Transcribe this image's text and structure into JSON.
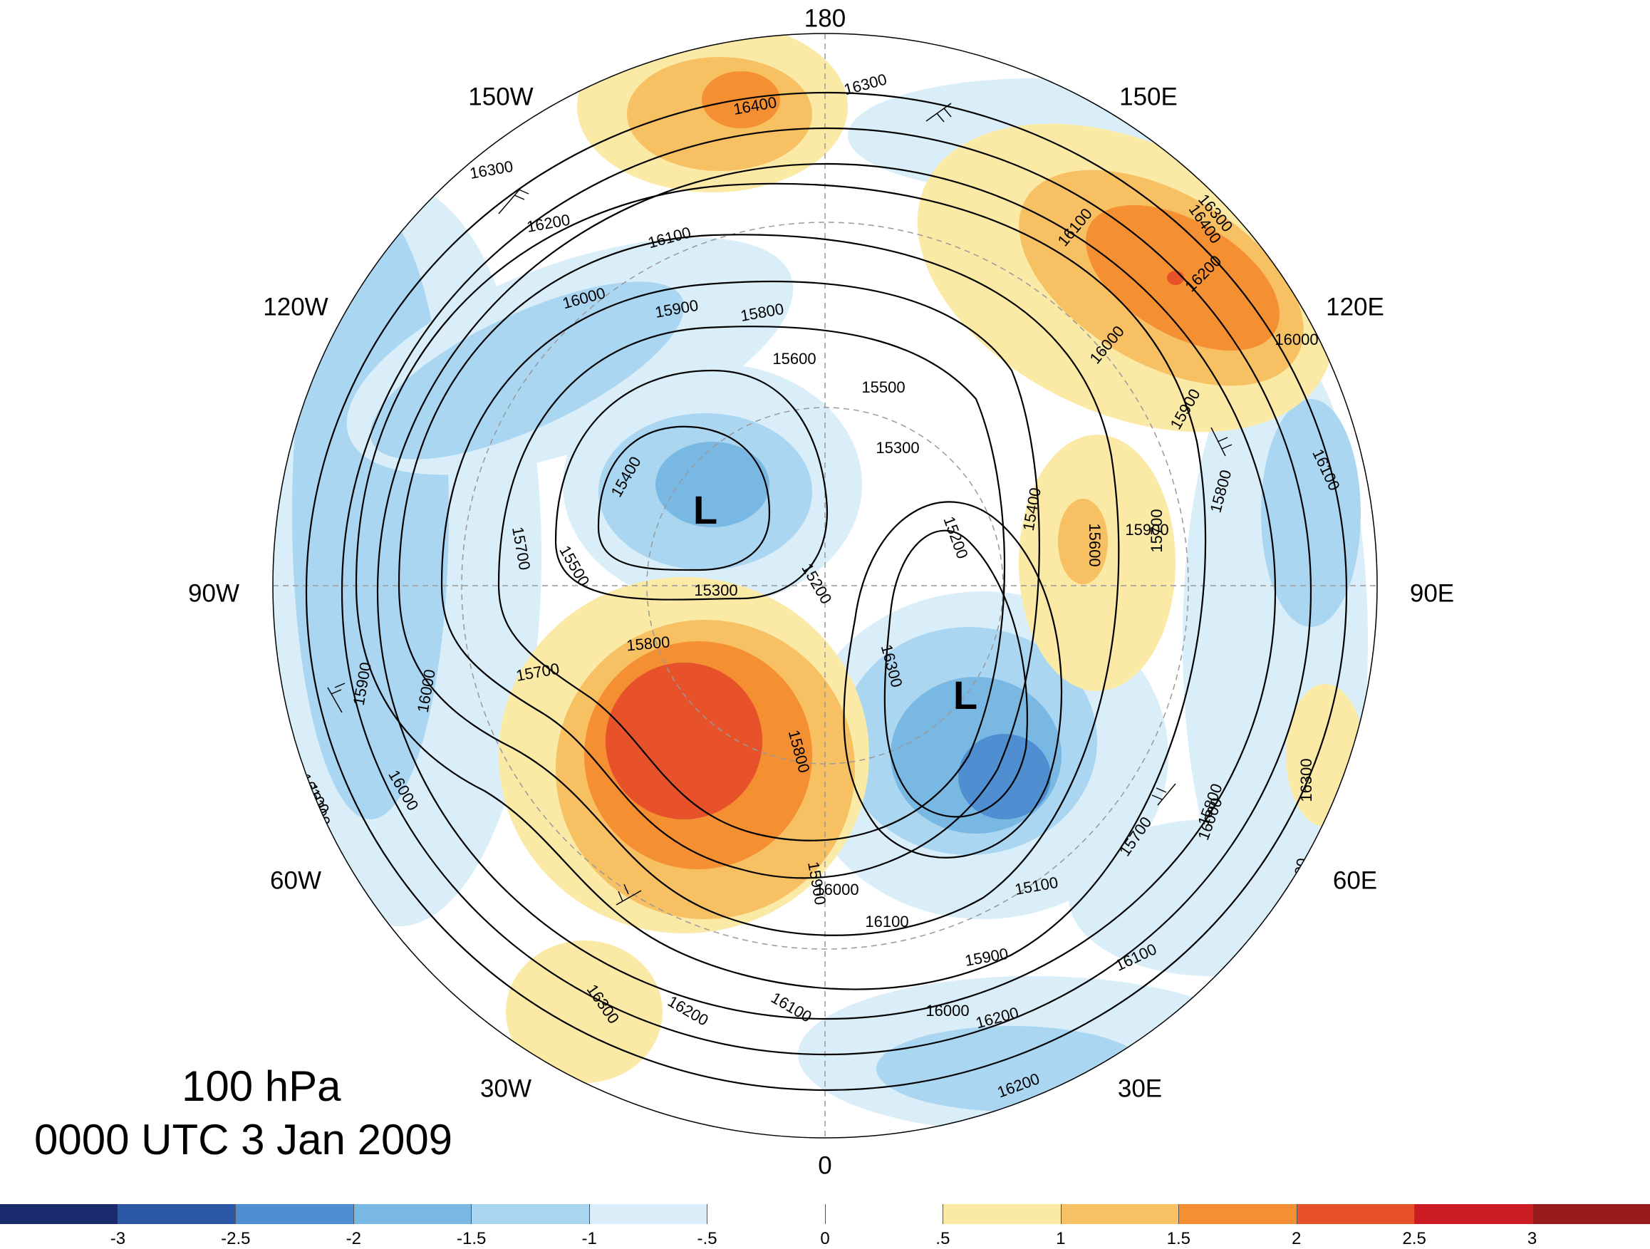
{
  "title": {
    "level": "100 hPa",
    "time": "0000 UTC 3 Jan 2009"
  },
  "longitude_labels": [
    "180",
    "150E",
    "120E",
    "90E",
    "60E",
    "30E",
    "0",
    "30W",
    "60W",
    "90W",
    "120W",
    "150W"
  ],
  "pressure_lows": [
    {
      "label": "L",
      "lon": -95,
      "lat": 72
    },
    {
      "label": "L",
      "lon": 60,
      "lat": 67
    }
  ],
  "contour_labels": [
    "16400",
    "16300",
    "16300",
    "16200",
    "16100",
    "16000",
    "15900",
    "15800",
    "15600",
    "15500",
    "15300",
    "15400",
    "15700",
    "15500",
    "15300",
    "15200",
    "15200",
    "15400",
    "15600",
    "15700",
    "15800",
    "15900",
    "16000",
    "16100",
    "16200",
    "16300",
    "16400",
    "16100",
    "16000",
    "15900",
    "15800",
    "15700",
    "15800",
    "15900",
    "16000",
    "16100",
    "16200",
    "16300",
    "16000",
    "15900",
    "16000",
    "16100",
    "16200",
    "16300",
    "15100",
    "15700",
    "15800",
    "15900",
    "16000",
    "16100",
    "16200",
    "16300",
    "16300",
    "16100",
    "16200",
    "16300",
    "16000"
  ],
  "colorbar": {
    "unit_note": "",
    "tick_labels": [
      "-3",
      "-2.5",
      "-2",
      "-1.5",
      "-1",
      "-.5",
      "0",
      ".5",
      "1",
      "1.5",
      "2",
      "2.5",
      "3"
    ],
    "colors": [
      "#1a2a6c",
      "#2d58a8",
      "#4f8ed1",
      "#7ab8e4",
      "#aad6f1",
      "#d9eef8",
      "#ffffff",
      "#ffffff",
      "#fbe9a6",
      "#f7c063",
      "#f48f32",
      "#e8522a",
      "#cc1c23",
      "#981b1e"
    ]
  },
  "anomaly_colors": {
    "pos1": "#fbe9a6",
    "pos2": "#f7c063",
    "pos3": "#f48f32",
    "pos4": "#e8522a",
    "pos5": "#cc1c23",
    "neg1": "#d9eef8",
    "neg2": "#aad6f1",
    "neg3": "#7ab8e4",
    "neg4": "#4f8ed1",
    "neg5": "#2d58a8"
  }
}
